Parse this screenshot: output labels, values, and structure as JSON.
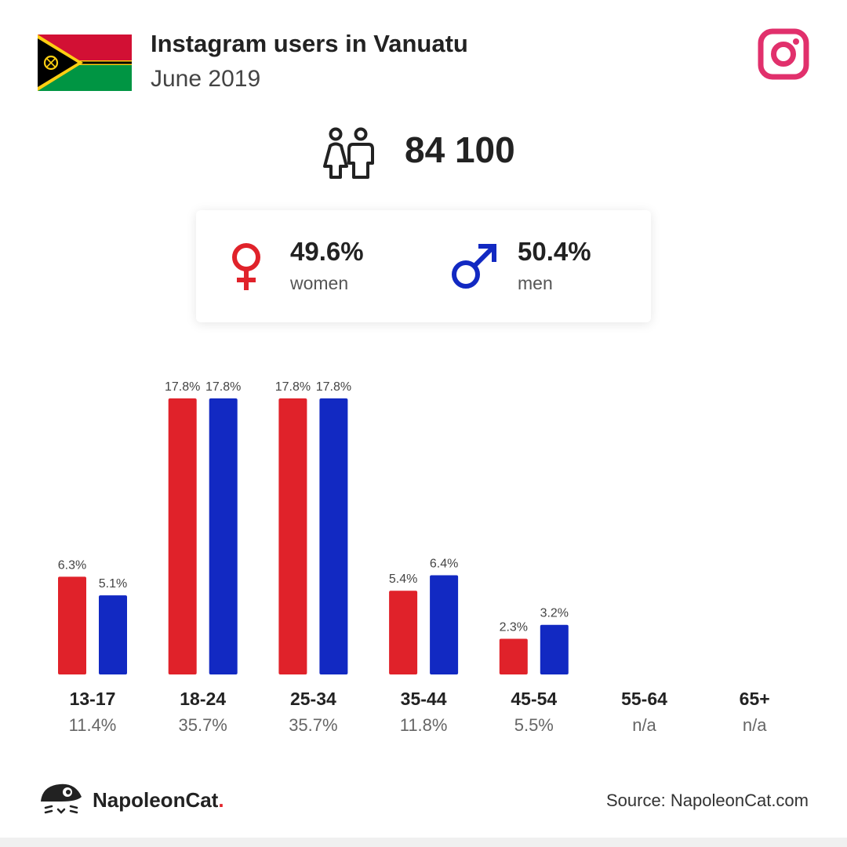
{
  "header": {
    "title": "Instagram users in Vanuatu",
    "subtitle": "June 2019",
    "flag_icon": "vanuatu-flag",
    "app_icon": "instagram-icon"
  },
  "total": {
    "value": "84 100",
    "icon": "users-icon"
  },
  "gender": {
    "women_pct": "49.6%",
    "women_label": "women",
    "men_pct": "50.4%",
    "men_label": "men",
    "women_color": "#e0222a",
    "men_color": "#1229c2"
  },
  "chart_data": {
    "type": "bar",
    "categories": [
      "13-17",
      "18-24",
      "25-34",
      "35-44",
      "45-54",
      "55-64",
      "65+"
    ],
    "series": [
      {
        "name": "women",
        "values": [
          6.3,
          17.8,
          17.8,
          5.4,
          2.3,
          null,
          null
        ],
        "labels": [
          "6.3%",
          "17.8%",
          "17.8%",
          "5.4%",
          "2.3%",
          "",
          ""
        ]
      },
      {
        "name": "men",
        "values": [
          5.1,
          17.8,
          17.8,
          6.4,
          3.2,
          null,
          null
        ],
        "labels": [
          "5.1%",
          "17.8%",
          "17.8%",
          "6.4%",
          "3.2%",
          "",
          ""
        ]
      }
    ],
    "category_totals": [
      "11.4%",
      "35.7%",
      "35.7%",
      "11.8%",
      "5.5%",
      "n/a",
      "n/a"
    ],
    "ylim": [
      0,
      17.8
    ]
  },
  "footer": {
    "brand_name": "NapoleonCat",
    "brand_dot": ".",
    "source": "Source: NapoleonCat.com"
  }
}
